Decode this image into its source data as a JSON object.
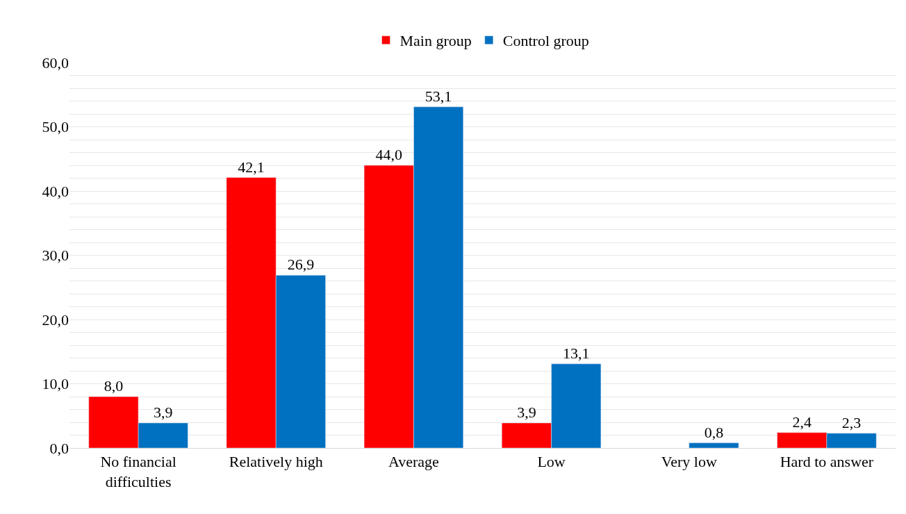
{
  "chart_data": {
    "type": "bar",
    "categories": [
      "No financial\ndifficulties",
      "Relatively high",
      "Average",
      "Low",
      "Very low",
      "Hard to answer"
    ],
    "series": [
      {
        "name": "Main group",
        "color": "#ff0000",
        "values": [
          8.0,
          42.1,
          44.0,
          3.9,
          null,
          2.4
        ],
        "value_labels": [
          "8,0",
          "42,1",
          "44,0",
          "3,9",
          null,
          "2,4"
        ]
      },
      {
        "name": "Control group",
        "color": "#0070c0",
        "values": [
          3.9,
          26.9,
          53.1,
          13.1,
          0.8,
          2.3
        ],
        "value_labels": [
          "3,9",
          "26,9",
          "53,1",
          "13,1",
          "0,8",
          "2,3"
        ]
      }
    ],
    "ylim": [
      0,
      60
    ],
    "yticks": [
      {
        "value": 0,
        "label": "0,0"
      },
      {
        "value": 2,
        "label": null
      },
      {
        "value": 4,
        "label": null
      },
      {
        "value": 6,
        "label": null
      },
      {
        "value": 8,
        "label": null
      },
      {
        "value": 10,
        "label": "10,0"
      },
      {
        "value": 12,
        "label": null
      },
      {
        "value": 14,
        "label": null
      },
      {
        "value": 16,
        "label": null
      },
      {
        "value": 18,
        "label": null
      },
      {
        "value": 20,
        "label": "20,0"
      },
      {
        "value": 22,
        "label": null
      },
      {
        "value": 24,
        "label": null
      },
      {
        "value": 26,
        "label": null
      },
      {
        "value": 28,
        "label": null
      },
      {
        "value": 30,
        "label": "30,0"
      },
      {
        "value": 32,
        "label": null
      },
      {
        "value": 34,
        "label": null
      },
      {
        "value": 36,
        "label": null
      },
      {
        "value": 38,
        "label": null
      },
      {
        "value": 40,
        "label": "40,0"
      },
      {
        "value": 42,
        "label": null
      },
      {
        "value": 44,
        "label": null
      },
      {
        "value": 46,
        "label": null
      },
      {
        "value": 48,
        "label": null
      },
      {
        "value": 50,
        "label": "50,0"
      },
      {
        "value": 52,
        "label": null
      },
      {
        "value": 54,
        "label": null
      },
      {
        "value": 56,
        "label": null
      },
      {
        "value": 58,
        "label": null
      },
      {
        "value": 60,
        "label": "60,0"
      }
    ],
    "grid": "y",
    "legend": "top"
  }
}
